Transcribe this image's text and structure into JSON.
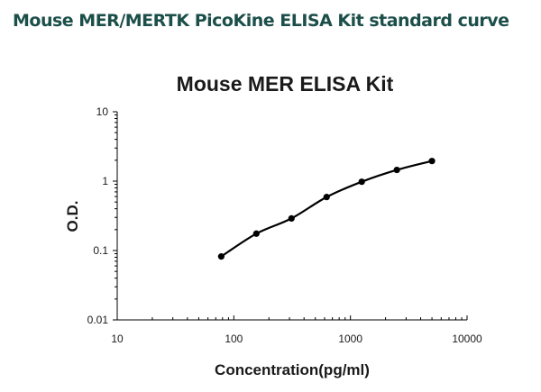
{
  "page": {
    "heading": "Mouse MER/MERTK PicoKine ELISA Kit standard curve",
    "heading_color": "#1c4f4a"
  },
  "chart_data": {
    "type": "scatter",
    "title": "Mouse MER ELISA Kit",
    "xlabel": "Concentration(pg/ml)",
    "ylabel": "O.D.",
    "xscale": "log",
    "yscale": "log",
    "xlim": [
      10,
      10000
    ],
    "ylim": [
      0.01,
      10
    ],
    "x_ticks": [
      10,
      100,
      1000,
      10000
    ],
    "x_tick_labels": [
      "10",
      "100",
      "1000",
      "10000"
    ],
    "y_ticks": [
      0.01,
      0.1,
      1,
      10
    ],
    "y_tick_labels": [
      "0.01",
      "0.1",
      "1",
      "10"
    ],
    "grid": false,
    "series": [
      {
        "x": [
          78,
          156,
          312,
          625,
          1250,
          2500,
          5000
        ],
        "y": [
          0.082,
          0.175,
          0.29,
          0.59,
          0.98,
          1.45,
          1.95
        ],
        "marker": "circle",
        "color": "#000000",
        "fit_line": true
      }
    ]
  }
}
